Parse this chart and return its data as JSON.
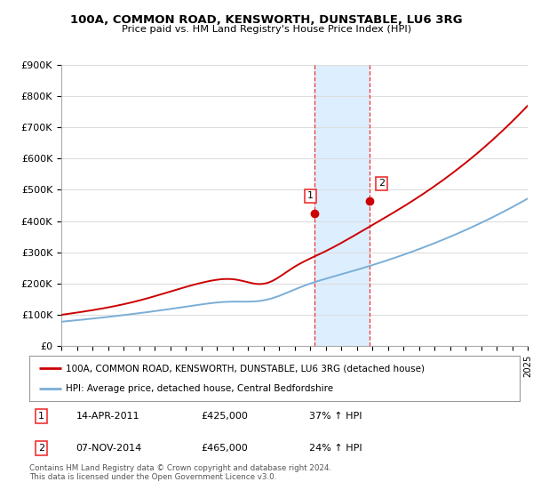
{
  "title": "100A, COMMON ROAD, KENSWORTH, DUNSTABLE, LU6 3RG",
  "subtitle": "Price paid vs. HM Land Registry's House Price Index (HPI)",
  "ylabel_ticks": [
    "£0",
    "£100K",
    "£200K",
    "£300K",
    "£400K",
    "£500K",
    "£600K",
    "£700K",
    "£800K",
    "£900K"
  ],
  "ylim": [
    0,
    900000
  ],
  "yticks": [
    0,
    100000,
    200000,
    300000,
    400000,
    500000,
    600000,
    700000,
    800000,
    900000
  ],
  "x_start_year": 1995,
  "x_end_year": 2025,
  "red_line_color": "#cc0000",
  "blue_line_color": "#7aaed6",
  "highlight_bg_color": "#ddeeff",
  "vline_color": "#ee3333",
  "marker1_year": 2011.28,
  "marker2_year": 2014.85,
  "marker1_value": 425000,
  "marker2_value": 465000,
  "legend_entries": [
    "100A, COMMON ROAD, KENSWORTH, DUNSTABLE, LU6 3RG (detached house)",
    "HPI: Average price, detached house, Central Bedfordshire"
  ],
  "table_rows": [
    [
      "1",
      "14-APR-2011",
      "£425,000",
      "37% ↑ HPI"
    ],
    [
      "2",
      "07-NOV-2014",
      "£465,000",
      "24% ↑ HPI"
    ]
  ],
  "footnote": "Contains HM Land Registry data © Crown copyright and database right 2024.\nThis data is licensed under the Open Government Licence v3.0.",
  "background_color": "#ffffff",
  "grid_color": "#dddddd"
}
